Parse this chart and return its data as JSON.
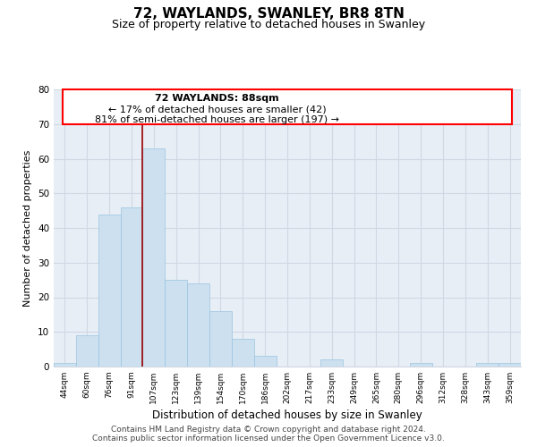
{
  "title": "72, WAYLANDS, SWANLEY, BR8 8TN",
  "subtitle": "Size of property relative to detached houses in Swanley",
  "xlabel": "Distribution of detached houses by size in Swanley",
  "ylabel": "Number of detached properties",
  "categories": [
    "44sqm",
    "60sqm",
    "76sqm",
    "91sqm",
    "107sqm",
    "123sqm",
    "139sqm",
    "154sqm",
    "170sqm",
    "186sqm",
    "202sqm",
    "217sqm",
    "233sqm",
    "249sqm",
    "265sqm",
    "280sqm",
    "296sqm",
    "312sqm",
    "328sqm",
    "343sqm",
    "359sqm"
  ],
  "values": [
    1,
    9,
    44,
    46,
    63,
    25,
    24,
    16,
    8,
    3,
    0,
    0,
    2,
    0,
    0,
    0,
    1,
    0,
    0,
    1,
    1
  ],
  "bar_color": "#cce0f0",
  "bar_edge_color": "#9ac4e0",
  "vline_x_index": 3,
  "vline_color": "#990000",
  "annotation_lines": [
    "72 WAYLANDS: 88sqm",
    "← 17% of detached houses are smaller (42)",
    "81% of semi-detached houses are larger (197) →"
  ],
  "ylim": [
    0,
    80
  ],
  "yticks": [
    0,
    10,
    20,
    30,
    40,
    50,
    60,
    70,
    80
  ],
  "background_color": "#e8eef5",
  "grid_color": "#d0d8e4",
  "footer_line1": "Contains HM Land Registry data © Crown copyright and database right 2024.",
  "footer_line2": "Contains public sector information licensed under the Open Government Licence v3.0.",
  "title_fontsize": 11,
  "subtitle_fontsize": 9,
  "xlabel_fontsize": 8.5,
  "ylabel_fontsize": 8,
  "annotation_fontsize": 8,
  "footer_fontsize": 6.5
}
